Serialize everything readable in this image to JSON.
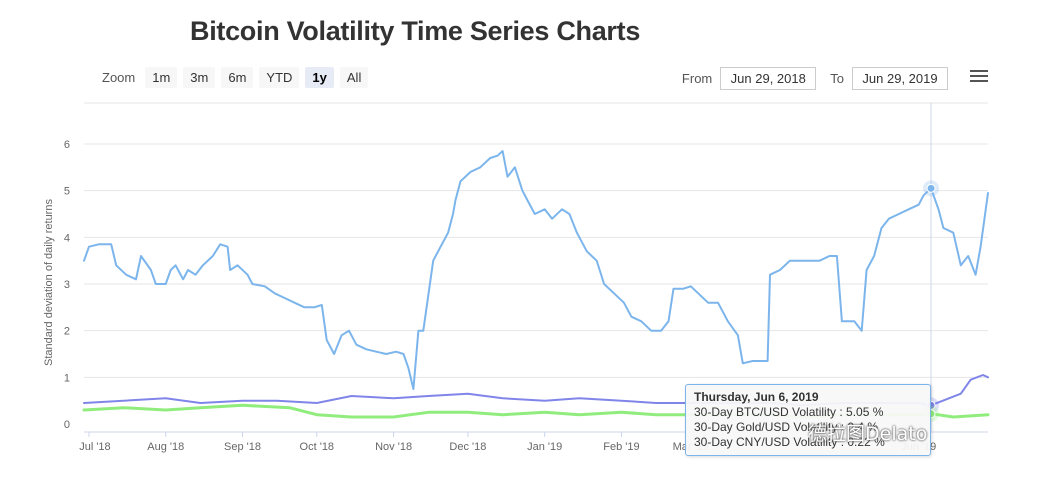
{
  "page_title": "Bitcoin Volatility Time Series Charts",
  "range_selector": {
    "zoom_label": "Zoom",
    "buttons": [
      "1m",
      "3m",
      "6m",
      "YTD",
      "1y",
      "All"
    ],
    "active": "1y",
    "from_label": "From",
    "from_value": "Jun 29, 2018",
    "to_label": "To",
    "to_value": "Jun 29, 2019"
  },
  "menu_icon": "hamburger-menu-icon",
  "tooltip": {
    "date": "Thursday, Jun 6, 2019",
    "line1": "30-Day BTC/USD Volatility : 5.05 %",
    "line2": "30-Day Gold/USD Volatility : 0.4 %",
    "line3": "30-Day CNY/USD Volatility : 0.22 %"
  },
  "watermark": "德拉图Delato",
  "chart_data": {
    "type": "line",
    "title": "Bitcoin Volatility Time Series Charts",
    "ylabel": "Standard deviation of daily returns",
    "xlabel": "",
    "ylim": [
      0,
      6
    ],
    "yticks": [
      0,
      1,
      2,
      3,
      4,
      5,
      6
    ],
    "xlim": [
      "2018-06-29",
      "2019-06-29"
    ],
    "xticks": [
      {
        "date": "2018-07-01",
        "label": "Jul '18"
      },
      {
        "date": "2018-08-01",
        "label": "Aug '18"
      },
      {
        "date": "2018-09-01",
        "label": "Sep '18"
      },
      {
        "date": "2018-10-01",
        "label": "Oct '18"
      },
      {
        "date": "2018-11-01",
        "label": "Nov '18"
      },
      {
        "date": "2018-12-01",
        "label": "Dec '18"
      },
      {
        "date": "2019-01-01",
        "label": "Jan '19"
      },
      {
        "date": "2019-02-01",
        "label": "Feb '19"
      },
      {
        "date": "2019-03-01",
        "label": "Mar '19"
      },
      {
        "date": "2019-06-01",
        "label": "Jun '19"
      }
    ],
    "grid": true,
    "crosshair_date": "2019-06-06",
    "series": [
      {
        "name": "30-Day BTC/USD Volatility",
        "color": "#7cb5ec",
        "points": [
          [
            "2018-06-29",
            3.5
          ],
          [
            "2018-07-01",
            3.8
          ],
          [
            "2018-07-05",
            3.85
          ],
          [
            "2018-07-10",
            3.85
          ],
          [
            "2018-07-12",
            3.4
          ],
          [
            "2018-07-16",
            3.2
          ],
          [
            "2018-07-20",
            3.1
          ],
          [
            "2018-07-22",
            3.6
          ],
          [
            "2018-07-26",
            3.3
          ],
          [
            "2018-07-28",
            3.0
          ],
          [
            "2018-08-01",
            3.0
          ],
          [
            "2018-08-03",
            3.3
          ],
          [
            "2018-08-05",
            3.4
          ],
          [
            "2018-08-08",
            3.1
          ],
          [
            "2018-08-10",
            3.3
          ],
          [
            "2018-08-13",
            3.2
          ],
          [
            "2018-08-16",
            3.4
          ],
          [
            "2018-08-20",
            3.6
          ],
          [
            "2018-08-23",
            3.85
          ],
          [
            "2018-08-26",
            3.8
          ],
          [
            "2018-08-27",
            3.3
          ],
          [
            "2018-08-30",
            3.4
          ],
          [
            "2018-09-03",
            3.2
          ],
          [
            "2018-09-05",
            3.0
          ],
          [
            "2018-09-10",
            2.95
          ],
          [
            "2018-09-14",
            2.8
          ],
          [
            "2018-09-18",
            2.7
          ],
          [
            "2018-09-22",
            2.6
          ],
          [
            "2018-09-26",
            2.5
          ],
          [
            "2018-09-30",
            2.5
          ],
          [
            "2018-10-03",
            2.55
          ],
          [
            "2018-10-05",
            1.8
          ],
          [
            "2018-10-08",
            1.5
          ],
          [
            "2018-10-11",
            1.9
          ],
          [
            "2018-10-14",
            2.0
          ],
          [
            "2018-10-17",
            1.7
          ],
          [
            "2018-10-21",
            1.6
          ],
          [
            "2018-10-25",
            1.55
          ],
          [
            "2018-10-29",
            1.5
          ],
          [
            "2018-11-02",
            1.55
          ],
          [
            "2018-11-05",
            1.5
          ],
          [
            "2018-11-07",
            1.2
          ],
          [
            "2018-11-09",
            0.75
          ],
          [
            "2018-11-11",
            2.0
          ],
          [
            "2018-11-13",
            2.0
          ],
          [
            "2018-11-17",
            3.5
          ],
          [
            "2018-11-20",
            3.8
          ],
          [
            "2018-11-23",
            4.1
          ],
          [
            "2018-11-25",
            4.5
          ],
          [
            "2018-11-26",
            4.8
          ],
          [
            "2018-11-28",
            5.2
          ],
          [
            "2018-12-02",
            5.4
          ],
          [
            "2018-12-06",
            5.5
          ],
          [
            "2018-12-10",
            5.7
          ],
          [
            "2018-12-13",
            5.75
          ],
          [
            "2018-12-15",
            5.85
          ],
          [
            "2018-12-17",
            5.3
          ],
          [
            "2018-12-20",
            5.5
          ],
          [
            "2018-12-23",
            5.0
          ],
          [
            "2018-12-25",
            4.8
          ],
          [
            "2018-12-28",
            4.5
          ],
          [
            "2019-01-01",
            4.6
          ],
          [
            "2019-01-04",
            4.4
          ],
          [
            "2019-01-08",
            4.6
          ],
          [
            "2019-01-11",
            4.5
          ],
          [
            "2019-01-14",
            4.1
          ],
          [
            "2019-01-18",
            3.7
          ],
          [
            "2019-01-22",
            3.5
          ],
          [
            "2019-01-25",
            3.0
          ],
          [
            "2019-01-29",
            2.8
          ],
          [
            "2019-02-02",
            2.6
          ],
          [
            "2019-02-05",
            2.3
          ],
          [
            "2019-02-09",
            2.2
          ],
          [
            "2019-02-13",
            2.0
          ],
          [
            "2019-02-17",
            2.0
          ],
          [
            "2019-02-20",
            2.2
          ],
          [
            "2019-02-22",
            2.9
          ],
          [
            "2019-02-26",
            2.9
          ],
          [
            "2019-03-01",
            2.95
          ],
          [
            "2019-03-04",
            2.8
          ],
          [
            "2019-03-08",
            2.6
          ],
          [
            "2019-03-12",
            2.6
          ],
          [
            "2019-03-16",
            2.2
          ],
          [
            "2019-03-20",
            1.9
          ],
          [
            "2019-03-22",
            1.3
          ],
          [
            "2019-03-26",
            1.35
          ],
          [
            "2019-03-28",
            1.35
          ],
          [
            "2019-04-01",
            1.35
          ],
          [
            "2019-04-02",
            3.2
          ],
          [
            "2019-04-06",
            3.3
          ],
          [
            "2019-04-10",
            3.5
          ],
          [
            "2019-04-14",
            3.5
          ],
          [
            "2019-04-18",
            3.5
          ],
          [
            "2019-04-22",
            3.5
          ],
          [
            "2019-04-26",
            3.6
          ],
          [
            "2019-04-29",
            3.6
          ],
          [
            "2019-05-01",
            2.2
          ],
          [
            "2019-05-06",
            2.2
          ],
          [
            "2019-05-09",
            2.0
          ],
          [
            "2019-05-11",
            3.3
          ],
          [
            "2019-05-14",
            3.6
          ],
          [
            "2019-05-17",
            4.2
          ],
          [
            "2019-05-20",
            4.4
          ],
          [
            "2019-05-24",
            4.5
          ],
          [
            "2019-05-28",
            4.6
          ],
          [
            "2019-06-01",
            4.7
          ],
          [
            "2019-06-03",
            4.9
          ],
          [
            "2019-06-06",
            5.05
          ],
          [
            "2019-06-09",
            4.6
          ],
          [
            "2019-06-11",
            4.2
          ],
          [
            "2019-06-15",
            4.1
          ],
          [
            "2019-06-18",
            3.4
          ],
          [
            "2019-06-21",
            3.6
          ],
          [
            "2019-06-24",
            3.2
          ],
          [
            "2019-06-26",
            3.8
          ],
          [
            "2019-06-29",
            4.95
          ]
        ]
      },
      {
        "name": "30-Day Gold/USD Volatility",
        "color": "#8085e9",
        "points": [
          [
            "2018-06-29",
            0.45
          ],
          [
            "2018-07-15",
            0.5
          ],
          [
            "2018-08-01",
            0.55
          ],
          [
            "2018-08-15",
            0.45
          ],
          [
            "2018-09-01",
            0.5
          ],
          [
            "2018-09-15",
            0.5
          ],
          [
            "2018-10-01",
            0.45
          ],
          [
            "2018-10-15",
            0.6
          ],
          [
            "2018-11-01",
            0.55
          ],
          [
            "2018-11-15",
            0.6
          ],
          [
            "2018-12-01",
            0.65
          ],
          [
            "2018-12-15",
            0.55
          ],
          [
            "2019-01-01",
            0.5
          ],
          [
            "2019-01-15",
            0.55
          ],
          [
            "2019-02-01",
            0.5
          ],
          [
            "2019-02-15",
            0.45
          ],
          [
            "2019-03-01",
            0.45
          ],
          [
            "2019-03-15",
            0.45
          ],
          [
            "2019-04-01",
            0.45
          ],
          [
            "2019-04-15",
            0.4
          ],
          [
            "2019-05-01",
            0.45
          ],
          [
            "2019-05-15",
            0.45
          ],
          [
            "2019-06-01",
            0.45
          ],
          [
            "2019-06-06",
            0.4
          ],
          [
            "2019-06-18",
            0.65
          ],
          [
            "2019-06-22",
            0.95
          ],
          [
            "2019-06-27",
            1.05
          ],
          [
            "2019-06-29",
            1.0
          ]
        ]
      },
      {
        "name": "30-Day CNY/USD Volatility",
        "color": "#90ed7d",
        "points": [
          [
            "2018-06-29",
            0.3
          ],
          [
            "2018-07-15",
            0.35
          ],
          [
            "2018-08-01",
            0.3
          ],
          [
            "2018-08-15",
            0.35
          ],
          [
            "2018-09-01",
            0.4
          ],
          [
            "2018-09-20",
            0.35
          ],
          [
            "2018-10-01",
            0.2
          ],
          [
            "2018-10-15",
            0.15
          ],
          [
            "2018-11-01",
            0.15
          ],
          [
            "2018-11-15",
            0.25
          ],
          [
            "2018-12-01",
            0.25
          ],
          [
            "2018-12-15",
            0.2
          ],
          [
            "2019-01-01",
            0.25
          ],
          [
            "2019-01-15",
            0.2
          ],
          [
            "2019-02-01",
            0.25
          ],
          [
            "2019-02-15",
            0.2
          ],
          [
            "2019-03-01",
            0.2
          ],
          [
            "2019-03-15",
            0.2
          ],
          [
            "2019-04-01",
            0.2
          ],
          [
            "2019-04-15",
            0.15
          ],
          [
            "2019-05-01",
            0.2
          ],
          [
            "2019-05-15",
            0.2
          ],
          [
            "2019-06-01",
            0.2
          ],
          [
            "2019-06-06",
            0.22
          ],
          [
            "2019-06-15",
            0.15
          ],
          [
            "2019-06-29",
            0.2
          ]
        ]
      }
    ]
  }
}
